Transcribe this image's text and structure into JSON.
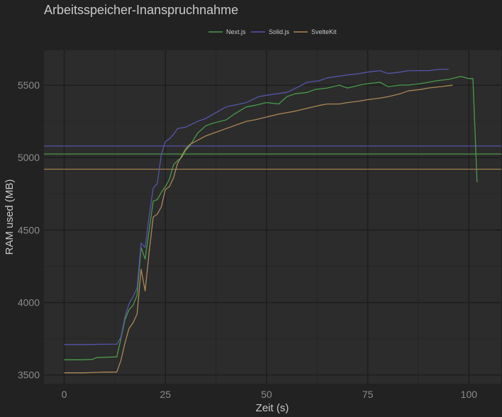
{
  "chart_data": {
    "type": "line",
    "title": "Arbeitsspeicher-Inanspruchnahme",
    "xlabel": "Zeit (s)",
    "ylabel": "RAM used (MB)",
    "xlim": [
      -5,
      108
    ],
    "ylim": [
      3440,
      5740
    ],
    "xticks": [
      0,
      25,
      50,
      75,
      100
    ],
    "yticks": [
      3500,
      4000,
      4500,
      5000,
      5500
    ],
    "grid": true,
    "legend_position": "top",
    "colors": {
      "background": "#222222",
      "panel": "#2c2c2c",
      "grid_major": "#1e1e1e",
      "grid_minor": "#262626",
      "text": "#c8c8c8",
      "tick_text": "#8c8c8c"
    },
    "series": [
      {
        "name": "Next.js",
        "color": "#4a9a4a",
        "mean": 5025,
        "x": [
          0,
          5,
          7,
          8,
          13,
          14,
          15,
          16,
          17,
          18,
          19,
          20,
          21,
          22,
          23,
          24,
          25,
          26,
          27,
          28,
          29,
          30,
          31,
          33,
          35,
          37,
          40,
          42,
          45,
          47,
          50,
          53,
          55,
          57,
          60,
          62,
          65,
          68,
          70,
          73,
          75,
          78,
          80,
          83,
          85,
          88,
          90,
          92,
          95,
          98,
          100,
          101,
          102
        ],
        "y": [
          3605,
          3605,
          3608,
          3620,
          3625,
          3750,
          3880,
          3950,
          3980,
          4050,
          4380,
          4300,
          4500,
          4700,
          4710,
          4760,
          4800,
          4850,
          4950,
          4980,
          5000,
          5050,
          5080,
          5170,
          5220,
          5240,
          5260,
          5300,
          5350,
          5360,
          5380,
          5370,
          5420,
          5440,
          5450,
          5470,
          5480,
          5500,
          5480,
          5500,
          5510,
          5520,
          5490,
          5500,
          5500,
          5510,
          5520,
          5530,
          5540,
          5560,
          5545,
          5545,
          4830
        ]
      },
      {
        "name": "Solid.js",
        "color": "#5555aa",
        "mean": 5080,
        "x": [
          0,
          5,
          10,
          13,
          14,
          15,
          16,
          17,
          18,
          19,
          20,
          21,
          22,
          23,
          24,
          25,
          26,
          27,
          28,
          30,
          33,
          35,
          40,
          45,
          48,
          50,
          55,
          58,
          60,
          63,
          65,
          70,
          73,
          75,
          78,
          80,
          83,
          85,
          88,
          90,
          93,
          95
        ],
        "y": [
          3710,
          3710,
          3712,
          3712,
          3760,
          3900,
          3990,
          4040,
          4100,
          4410,
          4380,
          4600,
          4790,
          4820,
          5020,
          5110,
          5130,
          5160,
          5200,
          5210,
          5250,
          5270,
          5350,
          5380,
          5420,
          5430,
          5450,
          5490,
          5520,
          5530,
          5550,
          5570,
          5580,
          5590,
          5600,
          5580,
          5590,
          5600,
          5600,
          5600,
          5610,
          5610
        ]
      },
      {
        "name": "SvelteKit",
        "color": "#aa8855",
        "mean": 4920,
        "x": [
          0,
          5,
          8,
          10,
          13,
          14,
          15,
          16,
          17,
          18,
          19,
          20,
          21,
          22,
          23,
          24,
          25,
          26,
          27,
          28,
          29,
          30,
          31,
          33,
          35,
          37,
          40,
          42,
          45,
          47,
          50,
          53,
          55,
          57,
          60,
          63,
          65,
          68,
          70,
          73,
          75,
          78,
          80,
          83,
          85,
          88,
          90,
          93,
          96
        ],
        "y": [
          3515,
          3515,
          3518,
          3520,
          3520,
          3600,
          3720,
          3820,
          3860,
          3920,
          4230,
          4080,
          4350,
          4590,
          4610,
          4660,
          4780,
          4800,
          4860,
          4960,
          5010,
          5060,
          5090,
          5120,
          5150,
          5170,
          5200,
          5220,
          5250,
          5260,
          5280,
          5300,
          5310,
          5320,
          5340,
          5360,
          5370,
          5370,
          5380,
          5390,
          5400,
          5410,
          5420,
          5440,
          5460,
          5470,
          5480,
          5490,
          5500
        ]
      }
    ]
  }
}
